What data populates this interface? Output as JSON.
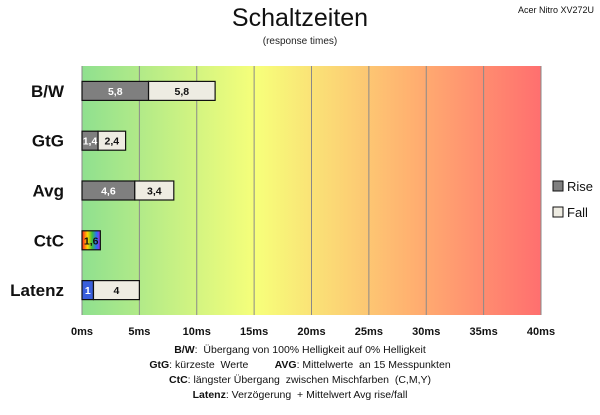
{
  "header": {
    "title": "Schaltzeiten",
    "subtitle": "(response times)",
    "model": "Acer Nitro XV272U"
  },
  "colors": {
    "gradient": [
      "#8fe08f",
      "#f7ff7a",
      "#ffb070",
      "#ff6f6f"
    ],
    "rise": "#7f7f7f",
    "fall": "#eeece2",
    "latency_rise": "#3a5fdc",
    "ctc_rainbow": [
      "#ff2020",
      "#ffd800",
      "#3cbf3c",
      "#2a6cff",
      "#b02ad0"
    ]
  },
  "chart_data": {
    "type": "bar",
    "orientation": "horizontal",
    "stacked": true,
    "categories": [
      "B/W",
      "GtG",
      "Avg",
      "CtC",
      "Latenz"
    ],
    "series": [
      {
        "name": "Rise",
        "values": [
          5.8,
          1.4,
          4.6,
          1.6,
          1
        ]
      },
      {
        "name": "Fall",
        "values": [
          5.8,
          2.4,
          3.4,
          null,
          4
        ]
      }
    ],
    "data_labels": [
      [
        "5,8",
        "5,8"
      ],
      [
        "1,4",
        "2,4"
      ],
      [
        "4,6",
        "3,4"
      ],
      [
        "1,6",
        ""
      ],
      [
        "1",
        "4"
      ]
    ],
    "x_ticks": [
      "0ms",
      "5ms",
      "10ms",
      "15ms",
      "20ms",
      "25ms",
      "30ms",
      "35ms",
      "40ms"
    ],
    "x_tick_values": [
      0,
      5,
      10,
      15,
      20,
      25,
      30,
      35,
      40
    ],
    "xlim": [
      0,
      40
    ],
    "grid": true,
    "legend_position": "right"
  },
  "notes": {
    "line1_key": "B/W",
    "line1_text": ":  Übergang von 100% Helligkeit auf 0% Helligkeit",
    "line2_key1": "GtG",
    "line2_text1": ": kürzeste  Werte         ",
    "line2_key2": "AVG",
    "line2_text2": ": Mittelwerte  an 15 Messpunkten",
    "line3_key": "CtC",
    "line3_text": ": längster Übergang  zwischen Mischfarben  (C,M,Y)",
    "line4_key": "Latenz",
    "line4_text": ": Verzögerung  + Mittelwert Avg rise/fall"
  }
}
